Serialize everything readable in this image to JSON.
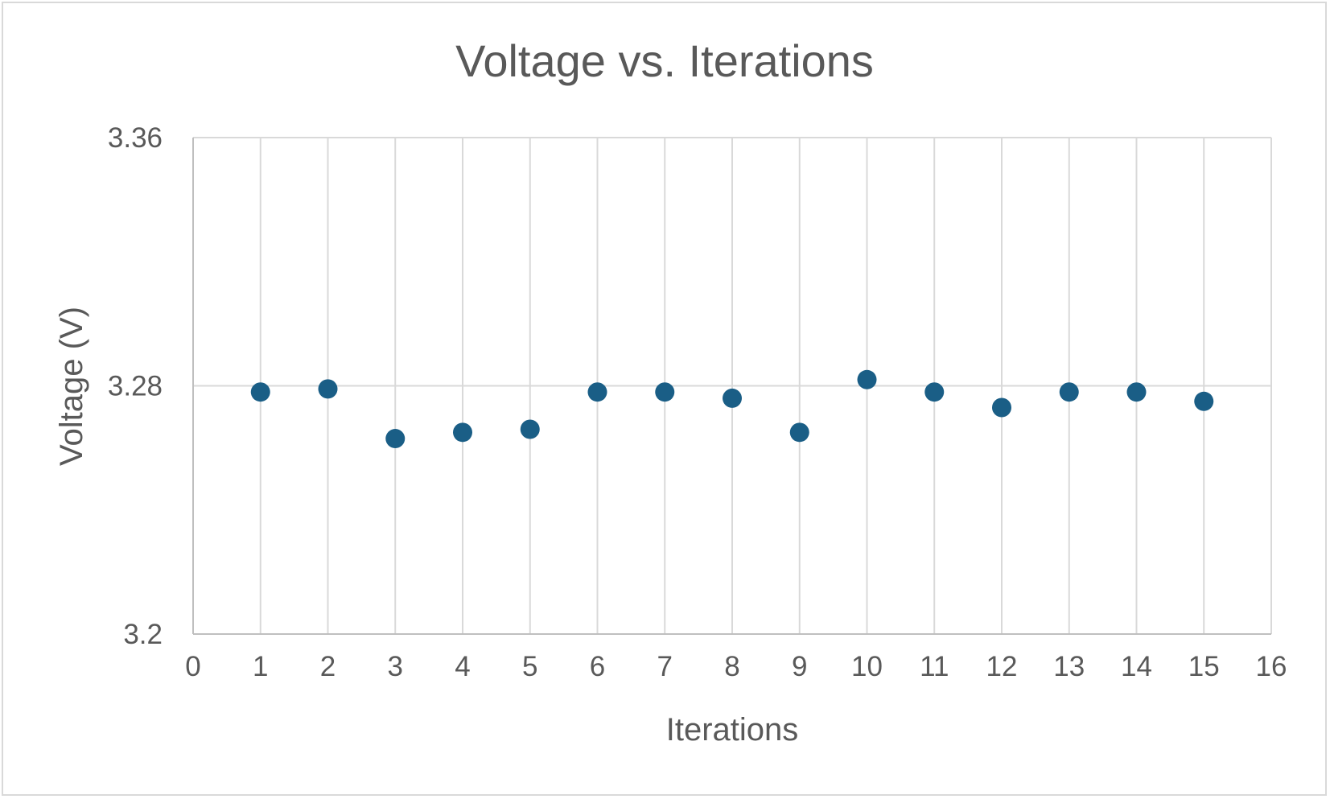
{
  "chart_data": {
    "type": "scatter",
    "title": "Voltage vs. Iterations",
    "xlabel": "Iterations",
    "ylabel": "Voltage (V)",
    "xlim": [
      0,
      16
    ],
    "ylim": [
      3.2,
      3.36
    ],
    "x_ticks": [
      0,
      1,
      2,
      3,
      4,
      5,
      6,
      7,
      8,
      9,
      10,
      11,
      12,
      13,
      14,
      15,
      16
    ],
    "y_ticks": [
      3.2,
      3.28,
      3.36
    ],
    "y_tick_labels": [
      "3.2",
      "3.28",
      "3.36"
    ],
    "grid": true,
    "legend": "none",
    "marker_color": "#1a5e86",
    "series": [
      {
        "x": [
          1,
          2,
          3,
          4,
          5,
          6,
          7,
          8,
          9,
          10,
          11,
          12,
          13,
          14,
          15
        ],
        "y": [
          3.278,
          3.279,
          3.263,
          3.265,
          3.266,
          3.278,
          3.278,
          3.276,
          3.265,
          3.282,
          3.278,
          3.273,
          3.278,
          3.278,
          3.275
        ]
      }
    ]
  }
}
